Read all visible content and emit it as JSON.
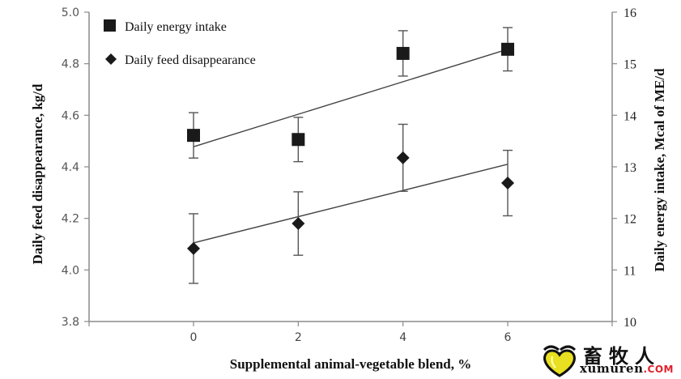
{
  "chart_data": {
    "type": "scatter",
    "title": "",
    "xlabel": "Supplemental animal-vegetable blend, %",
    "ylabel_left": "Daily feed disappearance, kg/d",
    "ylabel_right": "Daily energy intake, Mcal of ME/d",
    "x": [
      0,
      2,
      4,
      6
    ],
    "x_ticks": [
      "0",
      "2",
      "4",
      "6"
    ],
    "x_range": [
      -3,
      10
    ],
    "y_left_range": [
      3.8,
      5.0
    ],
    "y_left_ticks": [
      "3.8",
      "4.0",
      "4.2",
      "4.4",
      "4.6",
      "4.8",
      "5.0"
    ],
    "y_right_range": [
      10,
      16
    ],
    "y_right_ticks": [
      "10",
      "11",
      "12",
      "13",
      "14",
      "15",
      "16"
    ],
    "grid": false,
    "legend_position": "top-left",
    "series": [
      {
        "name": "Daily energy intake",
        "marker": "square",
        "axis": "right",
        "values": [
          13.61,
          13.53,
          15.2,
          15.28
        ],
        "error": [
          0.44,
          0.43,
          0.44,
          0.42
        ],
        "trendline": {
          "x": [
            0,
            6
          ],
          "y": [
            13.39,
            15.28
          ]
        }
      },
      {
        "name": "Daily feed disappearance",
        "marker": "diamond",
        "axis": "left",
        "values": [
          4.083,
          4.18,
          4.435,
          4.337
        ],
        "error": [
          0.135,
          0.123,
          0.13,
          0.127
        ],
        "trendline": {
          "x": [
            0,
            6
          ],
          "y": [
            4.105,
            4.41
          ]
        }
      }
    ]
  },
  "watermark": {
    "chinese": "畜牧人",
    "site": "xumuren",
    "domain": ".COM",
    "icon": "heart-logo-icon"
  },
  "colors": {
    "marker": "#1a1a1a",
    "axis": "#8a8a8a",
    "trendline": "#444444",
    "logo_yellow": "#e8e020",
    "logo_red": "#e0202a"
  }
}
